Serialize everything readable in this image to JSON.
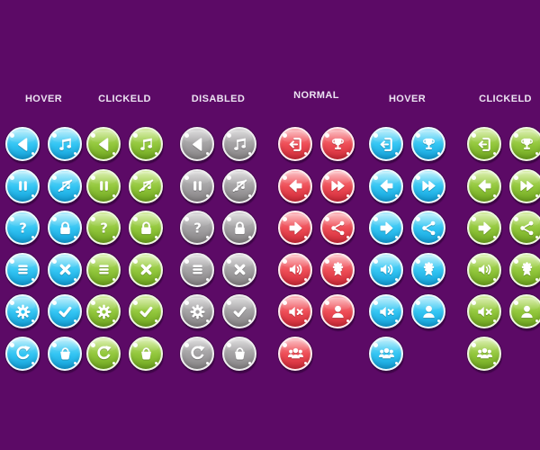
{
  "canvas": {
    "background": "#5c0a66"
  },
  "palette": {
    "blue": {
      "light": "#8fe4fa",
      "main": "#33c5f3",
      "dark": "#129fd8",
      "ring": "#eef9fd"
    },
    "green": {
      "light": "#c3e57c",
      "main": "#92c73c",
      "dark": "#6ea51f",
      "ring": "#eff8e0"
    },
    "gray": {
      "light": "#c6c5c6",
      "main": "#a3a1a3",
      "dark": "#868384",
      "ring": "#efeeef"
    },
    "red": {
      "light": "#f9949b",
      "main": "#ee4d56",
      "dark": "#cf2a38",
      "ring": "#ffecee"
    }
  },
  "label_color": "#ece4f2",
  "groups": [
    {
      "label": "HOVER",
      "state": "hover",
      "color": "blue",
      "icon_set": "left"
    },
    {
      "label": "CLICKELD",
      "state": "clicked",
      "color": "green",
      "icon_set": "left"
    },
    {
      "label": "DISABLED",
      "state": "disabled",
      "color": "gray",
      "icon_set": "left"
    },
    {
      "label": "NORMAL",
      "state": "normal",
      "color": "red",
      "icon_set": "right"
    },
    {
      "label": "HOVER",
      "state": "hover",
      "color": "blue",
      "icon_set": "right"
    },
    {
      "label": "CLICKELD",
      "state": "clicked",
      "color": "green",
      "icon_set": "right"
    }
  ],
  "icon_sets": {
    "left": [
      [
        "play-back",
        "music-note"
      ],
      [
        "pause",
        "music-off"
      ],
      [
        "question",
        "lock"
      ],
      [
        "menu",
        "close"
      ],
      [
        "gear",
        "check"
      ],
      [
        "restart",
        "basket"
      ]
    ],
    "right": [
      [
        "logout",
        "trophy"
      ],
      [
        "arrow-left",
        "fast-forward"
      ],
      [
        "arrow-right",
        "share"
      ],
      [
        "sound-on",
        "award"
      ],
      [
        "sound-off",
        "user"
      ],
      [
        "users-group"
      ]
    ]
  },
  "question_glyph": "?"
}
